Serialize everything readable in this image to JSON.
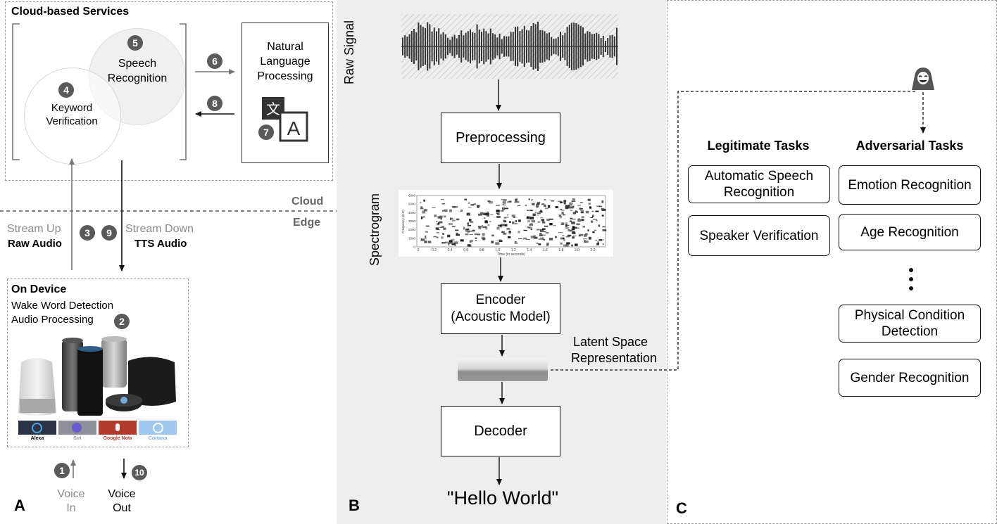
{
  "panel_a": {
    "letter": "A",
    "cloud_services": {
      "title": "Cloud-based Services",
      "speech_recognition": {
        "num": "5",
        "label": "Speech Recognition"
      },
      "keyword_verification": {
        "num": "4",
        "label": "Keyword Verification"
      },
      "nlp": {
        "label": "Natural Language Processing",
        "num": "7"
      },
      "arrow_to_nlp_num": "6",
      "arrow_from_nlp_num": "8"
    },
    "cloud_label": "Cloud",
    "edge_label": "Edge",
    "stream_up": {
      "label": "Stream Up",
      "sub": "Raw Audio",
      "num": "3"
    },
    "stream_down": {
      "label": "Stream Down",
      "sub": "TTS Audio",
      "num": "9"
    },
    "on_device": {
      "title": "On Device",
      "line1": "Wake Word Detection",
      "line2": "Audio Processing",
      "num": "2",
      "assistants": [
        "Alexa",
        "Siri",
        "Google Now",
        "Cortana"
      ]
    },
    "voice_in": {
      "num": "1",
      "label1": "Voice",
      "label2": "In"
    },
    "voice_out": {
      "num": "10",
      "label1": "Voice",
      "label2": "Out"
    }
  },
  "panel_b": {
    "letter": "B",
    "raw_signal_label": "Raw Signal",
    "preprocessing": "Preprocessing",
    "spectrogram_label": "Spectrogram",
    "spectrogram_ticks_x": [
      "0",
      "0.2",
      "0.4",
      "0.6",
      "0.8",
      "1.0",
      "1.2",
      "1.4",
      "1.6",
      "1.8",
      "2.0",
      "2.2"
    ],
    "spectrogram_ticks_y": [
      "0",
      "1000",
      "2000",
      "3000",
      "4000",
      "5000",
      "6000"
    ],
    "spectrogram_xlabel": "Time (in seconds)",
    "spectrogram_ylabel": "Frequency (kHz)",
    "encoder_line1": "Encoder",
    "encoder_line2": "(Acoustic Model)",
    "latent_line1": "Latent Space",
    "latent_line2": "Representation",
    "decoder": "Decoder",
    "output": "\"Hello World\""
  },
  "panel_c": {
    "letter": "C",
    "legit_title": "Legitimate Tasks",
    "adv_title": "Adversarial Tasks",
    "legit_tasks": [
      "Automatic Speech Recognition",
      "Speaker Verification"
    ],
    "adv_tasks": [
      "Emotion Recognition",
      "Age Recognition",
      "Physical Condition Detection",
      "Gender Recognition"
    ]
  },
  "colors": {
    "badge": "#5a5a5a",
    "panel_b_bg": "#eeeeee",
    "gray_text": "#8a8a8a"
  }
}
